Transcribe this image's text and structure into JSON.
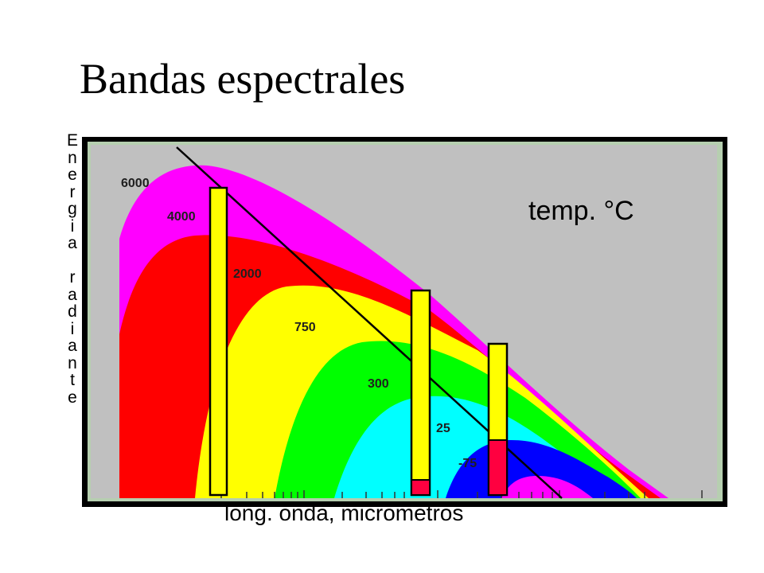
{
  "slide": {
    "title": "Bandas espectrales"
  },
  "chart_data": {
    "type": "area",
    "title": "Bandas espectrales",
    "ylabel": "Energia radiante",
    "xlabel": "long. onda, micrometros",
    "legend_title": "temp. °C",
    "grid": false,
    "series": [
      {
        "name": "6000",
        "color": "#ff00ff"
      },
      {
        "name": "4000",
        "color": "#ff0000"
      },
      {
        "name": "2000",
        "color": "#ffff00"
      },
      {
        "name": "750",
        "color": "#00ff00"
      },
      {
        "name": "300",
        "color": "#00ffff"
      },
      {
        "name": "25",
        "color": "#0000ff"
      },
      {
        "name": "-75",
        "color": "#ff00ff"
      }
    ],
    "background_color": "#c0c0c0",
    "frame_color": "#000000",
    "bar_colors": {
      "fill": "#ffff00",
      "highlight": "#ff0040"
    }
  }
}
